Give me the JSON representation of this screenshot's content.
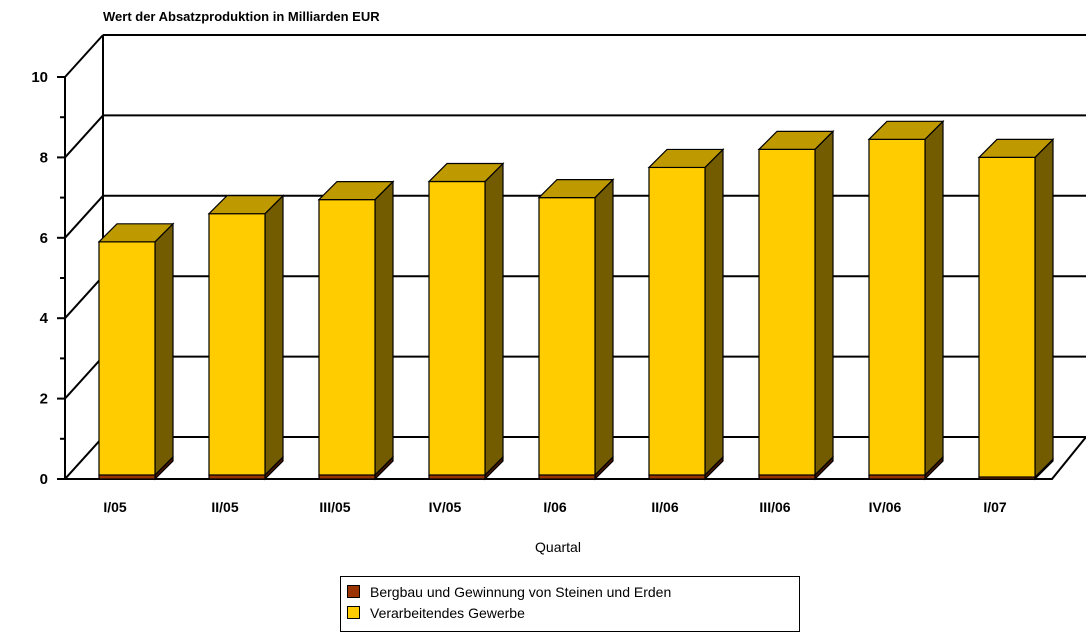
{
  "chart_data": {
    "type": "bar",
    "stacked": true,
    "title": "Wert der Absatzproduktion in Milliarden EUR",
    "xlabel": "Quartal",
    "ylabel": "",
    "ylim": [
      0,
      10
    ],
    "yticks": [
      0,
      2,
      4,
      6,
      8,
      10
    ],
    "grid": true,
    "legend_position": "bottom",
    "categories": [
      "I/05",
      "II/05",
      "III/05",
      "IV/05",
      "I/06",
      "II/06",
      "III/06",
      "IV/06",
      "I/07"
    ],
    "series": [
      {
        "name": "Bergbau und Gewinnung von Steinen und Erden",
        "color": "#993300",
        "values": [
          0.1,
          0.1,
          0.1,
          0.1,
          0.1,
          0.1,
          0.1,
          0.1,
          0.05
        ]
      },
      {
        "name": "Verarbeitendes Gewerbe",
        "color": "#ffcc00",
        "values": [
          5.8,
          6.5,
          6.85,
          7.3,
          6.9,
          7.65,
          8.1,
          8.35,
          7.95
        ]
      }
    ]
  }
}
